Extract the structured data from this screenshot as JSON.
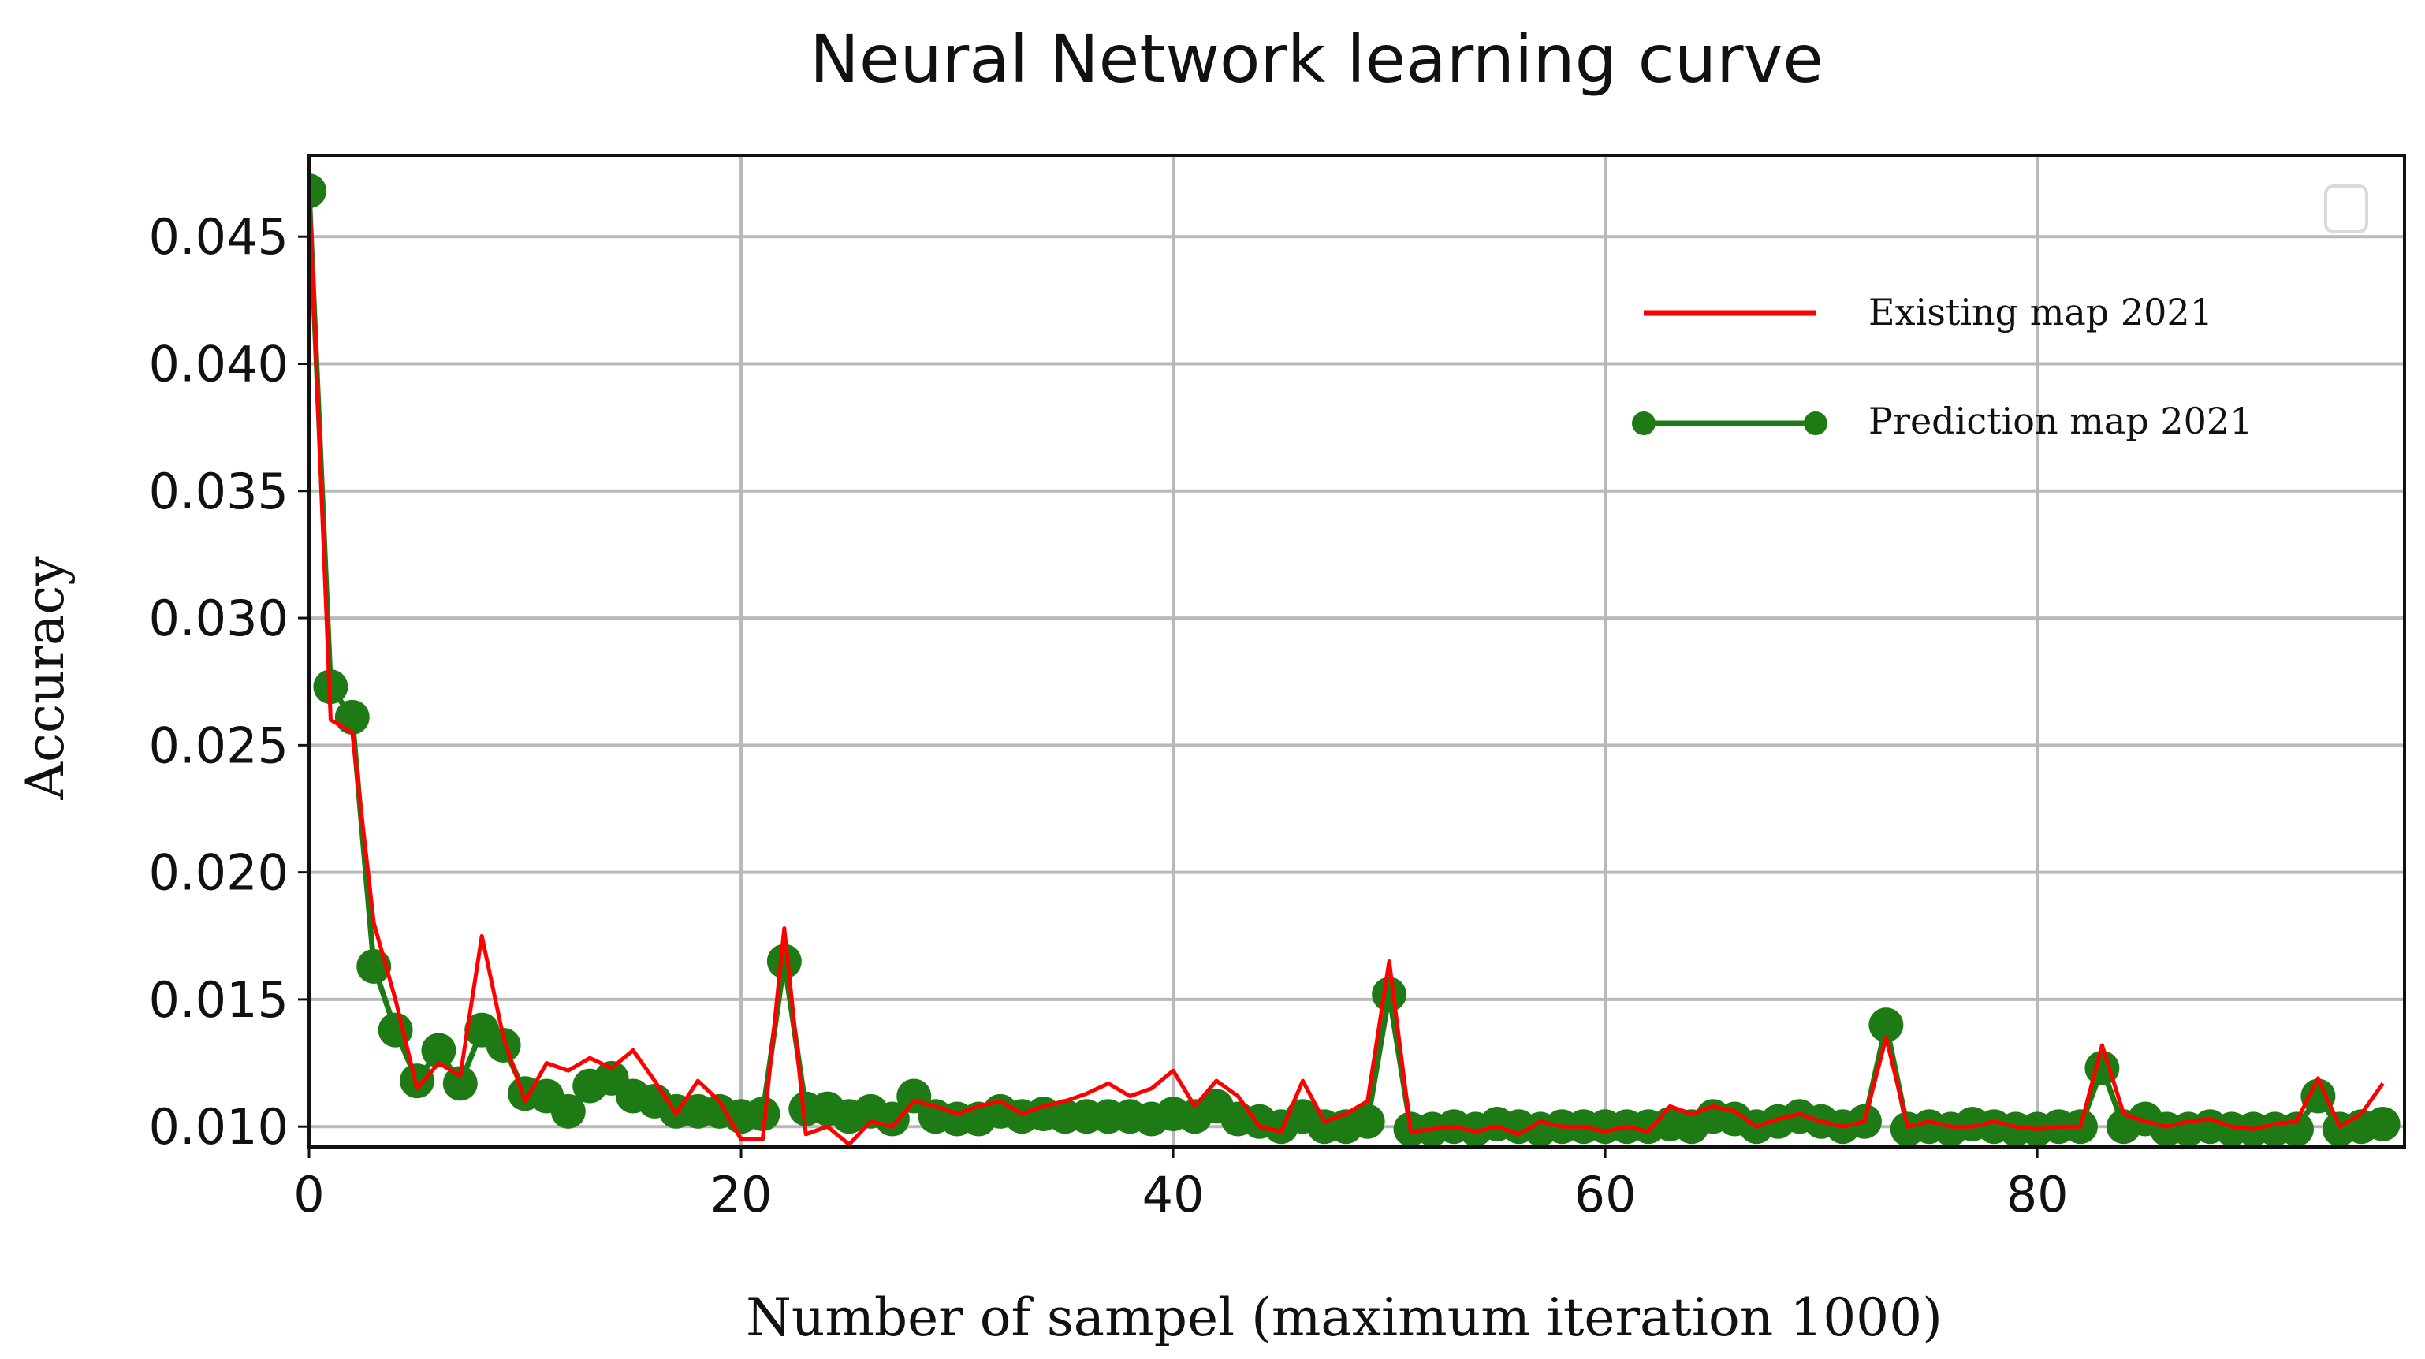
{
  "chart_data": {
    "type": "line",
    "title": "Neural Network learning curve",
    "xlabel": "Number of sampel (maximum iteration 1000)",
    "ylabel": "Accuracy",
    "xlim": [
      0,
      97
    ],
    "ylim": [
      0.0092,
      0.0482
    ],
    "xticks": [
      0,
      20,
      40,
      60,
      80
    ],
    "yticks": [
      0.01,
      0.015,
      0.02,
      0.025,
      0.03,
      0.035,
      0.04,
      0.045
    ],
    "ytick_labels": [
      "0.010",
      "0.015",
      "0.020",
      "0.025",
      "0.030",
      "0.035",
      "0.040",
      "0.045"
    ],
    "grid": true,
    "legend_position": "upper-right",
    "x": [
      0,
      1,
      2,
      3,
      4,
      5,
      6,
      7,
      8,
      9,
      10,
      11,
      12,
      13,
      14,
      15,
      16,
      17,
      18,
      19,
      20,
      21,
      22,
      23,
      24,
      25,
      26,
      27,
      28,
      29,
      30,
      31,
      32,
      33,
      34,
      35,
      36,
      37,
      38,
      39,
      40,
      41,
      42,
      43,
      44,
      45,
      46,
      47,
      48,
      49,
      50,
      51,
      52,
      53,
      54,
      55,
      56,
      57,
      58,
      59,
      60,
      61,
      62,
      63,
      64,
      65,
      66,
      67,
      68,
      69,
      70,
      71,
      72,
      73,
      74,
      75,
      76,
      77,
      78,
      79,
      80,
      81,
      82,
      83,
      84,
      85,
      86,
      87,
      88,
      89,
      90,
      91,
      92,
      93,
      94,
      95,
      96
    ],
    "series": [
      {
        "name": "Existing map 2021",
        "color": "#ff0000",
        "marker": false,
        "values": [
          0.047,
          0.026,
          0.0255,
          0.018,
          0.015,
          0.0115,
          0.0125,
          0.012,
          0.0175,
          0.0135,
          0.011,
          0.0125,
          0.0122,
          0.0127,
          0.0123,
          0.013,
          0.0118,
          0.0105,
          0.0118,
          0.011,
          0.0095,
          0.0095,
          0.0178,
          0.0097,
          0.01,
          0.0093,
          0.0102,
          0.01,
          0.011,
          0.0108,
          0.0105,
          0.0108,
          0.011,
          0.0105,
          0.0108,
          0.011,
          0.0113,
          0.0117,
          0.0112,
          0.0115,
          0.0122,
          0.0108,
          0.0118,
          0.0112,
          0.01,
          0.0098,
          0.0118,
          0.0102,
          0.0105,
          0.011,
          0.0165,
          0.0098,
          0.0099,
          0.01,
          0.0098,
          0.01,
          0.0097,
          0.0102,
          0.01,
          0.01,
          0.0098,
          0.01,
          0.0098,
          0.0108,
          0.0105,
          0.0108,
          0.0106,
          0.01,
          0.0103,
          0.0105,
          0.0102,
          0.01,
          0.0102,
          0.0135,
          0.01,
          0.0102,
          0.01,
          0.01,
          0.0102,
          0.01,
          0.0099,
          0.01,
          0.01,
          0.0132,
          0.0105,
          0.0102,
          0.01,
          0.0102,
          0.0103,
          0.01,
          0.0099,
          0.0101,
          0.0102,
          0.0119,
          0.01,
          0.0105,
          0.0117
        ]
      },
      {
        "name": "Prediction map 2021",
        "color": "#1e7a14",
        "marker": true,
        "values": [
          0.0468,
          0.0273,
          0.0261,
          0.0163,
          0.0138,
          0.0118,
          0.013,
          0.0117,
          0.0138,
          0.0132,
          0.0113,
          0.0112,
          0.0106,
          0.0116,
          0.0119,
          0.0112,
          0.011,
          0.0106,
          0.0106,
          0.0106,
          0.0104,
          0.0105,
          0.0165,
          0.0107,
          0.0107,
          0.0104,
          0.0106,
          0.0103,
          0.0112,
          0.0104,
          0.0103,
          0.0103,
          0.0106,
          0.0104,
          0.0105,
          0.0104,
          0.0104,
          0.0104,
          0.0104,
          0.0103,
          0.0105,
          0.0104,
          0.0108,
          0.0103,
          0.0102,
          0.01,
          0.0104,
          0.01,
          0.01,
          0.0102,
          0.0152,
          0.0099,
          0.0099,
          0.01,
          0.0099,
          0.0101,
          0.01,
          0.0099,
          0.01,
          0.01,
          0.01,
          0.01,
          0.01,
          0.0101,
          0.01,
          0.0104,
          0.0103,
          0.01,
          0.0102,
          0.0104,
          0.0102,
          0.01,
          0.0102,
          0.014,
          0.0099,
          0.01,
          0.0099,
          0.0101,
          0.01,
          0.0099,
          0.0099,
          0.01,
          0.01,
          0.0123,
          0.01,
          0.0103,
          0.0099,
          0.0099,
          0.01,
          0.0099,
          0.0099,
          0.0099,
          0.0099,
          0.0112,
          0.0099,
          0.01,
          0.0101
        ]
      }
    ]
  },
  "legend": {
    "empty_box": true
  }
}
